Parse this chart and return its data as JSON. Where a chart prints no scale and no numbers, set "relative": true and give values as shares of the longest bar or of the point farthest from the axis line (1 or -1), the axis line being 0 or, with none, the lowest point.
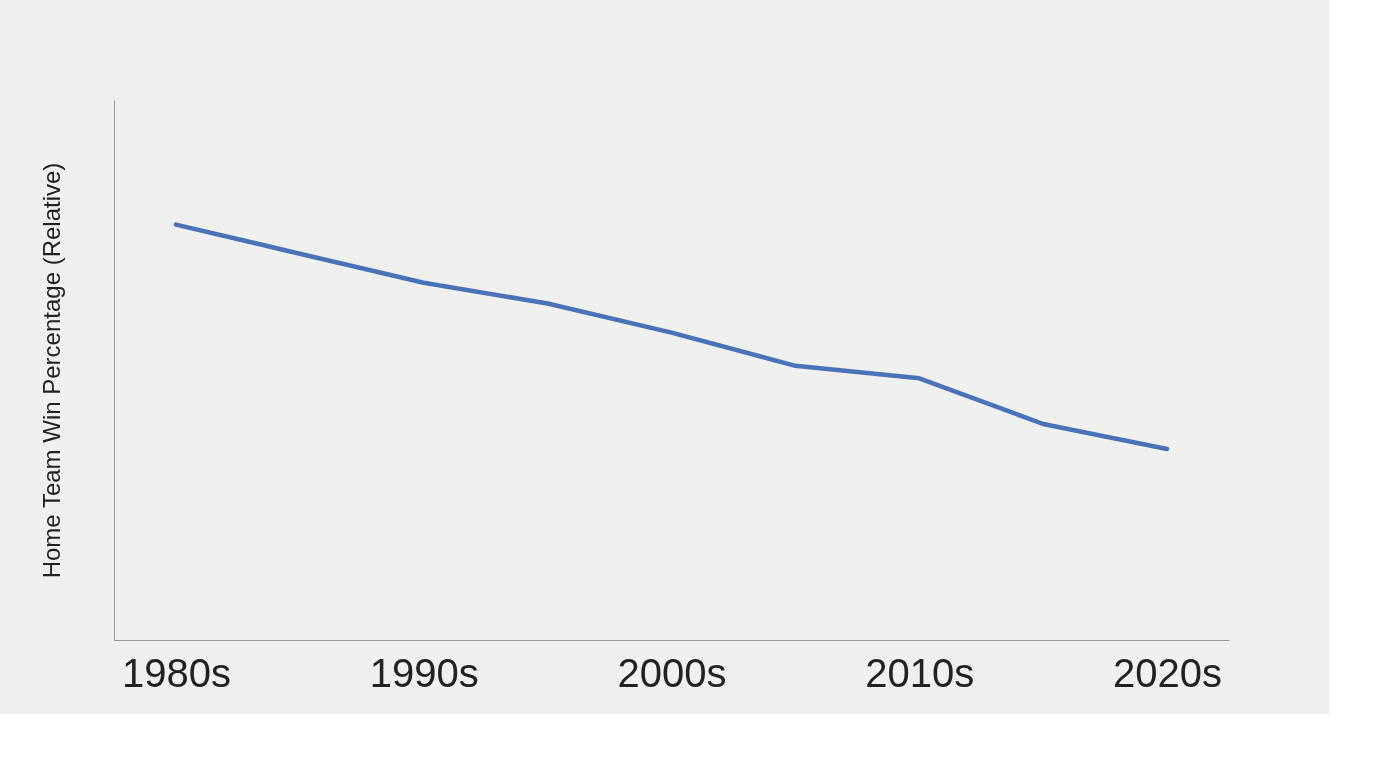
{
  "chart_data": {
    "type": "line",
    "ylabel": "Home Team Win Percentage (Relative)",
    "relative": true,
    "tick_labels": "x",
    "categories": [
      "1980s",
      null,
      "1990s",
      null,
      "2000s",
      null,
      "2010s",
      null,
      "2020s"
    ],
    "series": [
      {
        "color": "#4a72b8",
        "values": [
          1,
          0.93,
          0.86,
          0.81,
          0.74,
          0.66,
          0.63,
          0.52,
          0.46
        ]
      }
    ]
  }
}
